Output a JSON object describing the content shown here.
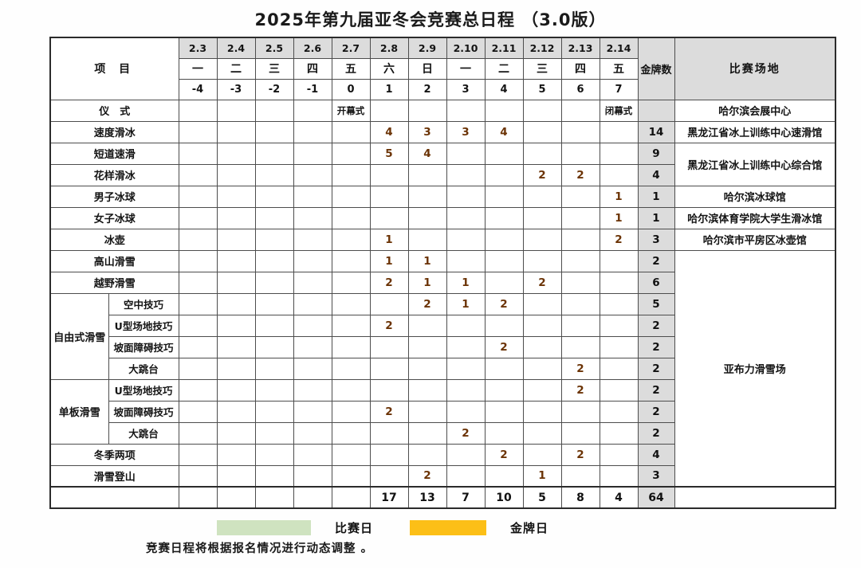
{
  "title": "2025年第九届亚冬会竞赛总日程 （3.0版）",
  "colors": {
    "competition_day_green": "#c7dfb4",
    "gold_day_orange": "#fcbf17",
    "header_gray": "#dcdcdc",
    "orange_cell_number_text": "#6b3305"
  },
  "header": {
    "project_label": "项 目",
    "gold_label": "金牌数",
    "venue_label": "比赛场地",
    "dates": [
      "2.3",
      "2.4",
      "2.5",
      "2.6",
      "2.7",
      "2.8",
      "2.9",
      "2.10",
      "2.11",
      "2.12",
      "2.13",
      "2.14"
    ],
    "weekdays": [
      "一",
      "二",
      "三",
      "四",
      "五",
      "六",
      "日",
      "一",
      "二",
      "三",
      "四",
      "五"
    ],
    "daynums": [
      "-4",
      "-3",
      "-2",
      "-1",
      "0",
      "1",
      "2",
      "3",
      "4",
      "5",
      "6",
      "7"
    ]
  },
  "rows": [
    {
      "label": "仪　式",
      "cells": [
        null,
        null,
        null,
        null,
        {
          "bg": "green",
          "text": "开幕式",
          "small": true
        },
        null,
        null,
        null,
        null,
        null,
        null,
        {
          "bg": "green",
          "text": "闭幕式",
          "small": true
        }
      ],
      "gold": "",
      "venue": {
        "text": "哈尔滨会展中心",
        "span": 1
      }
    },
    {
      "label": "速度滑冰",
      "cells": [
        null,
        null,
        null,
        null,
        null,
        {
          "bg": "orange",
          "text": "4"
        },
        {
          "bg": "orange",
          "text": "3"
        },
        {
          "bg": "orange",
          "text": "3"
        },
        {
          "bg": "orange",
          "text": "4"
        },
        null,
        null,
        null
      ],
      "gold": "14",
      "venue": {
        "text": "黑龙江省冰上训练中心速滑馆",
        "span": 1
      }
    },
    {
      "label": "短道速滑",
      "cells": [
        null,
        null,
        null,
        null,
        {
          "bg": "green"
        },
        {
          "bg": "orange",
          "text": "5"
        },
        {
          "bg": "orange",
          "text": "4"
        },
        null,
        null,
        null,
        null,
        null
      ],
      "gold": "9",
      "venue": {
        "text": "黑龙江省冰上训练中心综合馆",
        "span": 2
      }
    },
    {
      "label": "花样滑冰",
      "cells": [
        null,
        null,
        null,
        null,
        null,
        null,
        null,
        null,
        {
          "bg": "green"
        },
        {
          "bg": "orange",
          "text": "2"
        },
        {
          "bg": "orange",
          "text": "2"
        },
        null
      ],
      "gold": "4"
    },
    {
      "label": "男子冰球",
      "cells": [
        {
          "bg": "green"
        },
        {
          "bg": "green"
        },
        {
          "bg": "green"
        },
        {
          "bg": "green"
        },
        {
          "bg": "green"
        },
        {
          "bg": "green"
        },
        {
          "bg": "green"
        },
        {
          "bg": "green"
        },
        {
          "bg": "green"
        },
        {
          "bg": "green"
        },
        {
          "bg": "green"
        },
        {
          "bg": "orange",
          "text": "1"
        }
      ],
      "gold": "1",
      "venue": {
        "text": "哈尔滨冰球馆",
        "span": 1
      }
    },
    {
      "label": "女子冰球",
      "cells": [
        {
          "bg": "green"
        },
        {
          "bg": "green"
        },
        {
          "bg": "green"
        },
        {
          "bg": "green"
        },
        {
          "bg": "green"
        },
        {
          "bg": "green"
        },
        {
          "bg": "green"
        },
        {
          "bg": "green"
        },
        {
          "bg": "green"
        },
        {
          "bg": "green"
        },
        {
          "bg": "green"
        },
        {
          "bg": "orange",
          "text": "1"
        }
      ],
      "gold": "1",
      "venue": {
        "text": "哈尔滨体育学院大学生滑冰馆",
        "span": 1
      }
    },
    {
      "label": "冰壶",
      "cells": [
        null,
        {
          "bg": "green"
        },
        {
          "bg": "green"
        },
        {
          "bg": "green"
        },
        {
          "bg": "green"
        },
        {
          "bg": "orange",
          "text": "1"
        },
        {
          "bg": "green"
        },
        {
          "bg": "green"
        },
        {
          "bg": "green"
        },
        {
          "bg": "green"
        },
        {
          "bg": "green"
        },
        {
          "bg": "orange",
          "text": "2"
        }
      ],
      "gold": "3",
      "venue": {
        "text": "哈尔滨市平房区冰壶馆",
        "span": 1
      }
    },
    {
      "label": "高山滑雪",
      "cells": [
        null,
        null,
        null,
        null,
        null,
        {
          "bg": "orange",
          "text": "1"
        },
        {
          "bg": "orange",
          "text": "1"
        },
        null,
        null,
        null,
        null,
        null
      ],
      "gold": "2",
      "venue": {
        "text": "亚布力滑雪场",
        "span": 11
      }
    },
    {
      "label": "越野滑雪",
      "cells": [
        null,
        null,
        null,
        null,
        null,
        {
          "bg": "orange",
          "text": "2"
        },
        {
          "bg": "orange",
          "text": "1"
        },
        {
          "bg": "orange",
          "text": "1"
        },
        null,
        {
          "bg": "orange",
          "text": "2"
        },
        null,
        null
      ],
      "gold": "6"
    },
    {
      "group": {
        "label": "自由式滑雪",
        "span": 4
      },
      "sub": "空中技巧",
      "cells": [
        null,
        null,
        null,
        null,
        null,
        null,
        {
          "bg": "orange",
          "text": "2"
        },
        {
          "bg": "orange",
          "text": "1"
        },
        {
          "bg": "orange",
          "text": "2"
        },
        null,
        null,
        null
      ],
      "gold": "5"
    },
    {
      "sub": "U型场地技巧",
      "cells": [
        null,
        null,
        null,
        null,
        null,
        {
          "bg": "orange",
          "text": "2"
        },
        null,
        null,
        null,
        null,
        null,
        null
      ],
      "gold": "2"
    },
    {
      "sub": "坡面障碍技巧",
      "cells": [
        null,
        null,
        null,
        null,
        null,
        null,
        null,
        null,
        {
          "bg": "orange",
          "text": "2"
        },
        null,
        null,
        null
      ],
      "gold": "2"
    },
    {
      "sub": "大跳台",
      "cells": [
        null,
        null,
        null,
        null,
        null,
        null,
        null,
        null,
        null,
        null,
        {
          "bg": "orange",
          "text": "2"
        },
        null
      ],
      "gold": "2"
    },
    {
      "group": {
        "label": "单板滑雪",
        "span": 3
      },
      "sub": "U型场地技巧",
      "cells": [
        null,
        null,
        null,
        null,
        null,
        null,
        null,
        null,
        null,
        {
          "bg": "green"
        },
        {
          "bg": "orange",
          "text": "2"
        },
        null
      ],
      "gold": "2"
    },
    {
      "sub": "坡面障碍技巧",
      "cells": [
        null,
        null,
        null,
        null,
        null,
        {
          "bg": "orange",
          "text": "2"
        },
        null,
        null,
        null,
        null,
        null,
        null
      ],
      "gold": "2"
    },
    {
      "sub": "大跳台",
      "cells": [
        null,
        null,
        null,
        null,
        null,
        null,
        null,
        {
          "bg": "orange",
          "text": "2"
        },
        null,
        null,
        null,
        null
      ],
      "gold": "2"
    },
    {
      "label": "冬季两项",
      "cells": [
        null,
        null,
        null,
        null,
        null,
        null,
        null,
        null,
        {
          "bg": "orange",
          "text": "2"
        },
        null,
        {
          "bg": "orange",
          "text": "2"
        },
        null
      ],
      "gold": "4"
    },
    {
      "label": "滑雪登山",
      "cells": [
        null,
        null,
        null,
        null,
        null,
        null,
        {
          "bg": "orange",
          "text": "2"
        },
        null,
        null,
        {
          "bg": "orange",
          "text": "1"
        },
        null,
        null
      ],
      "gold": "3"
    },
    {
      "label": "",
      "total": true,
      "cells": [
        {
          "text": ""
        },
        {
          "text": ""
        },
        {
          "text": ""
        },
        {
          "text": ""
        },
        {
          "text": ""
        },
        {
          "text": "17"
        },
        {
          "text": "13"
        },
        {
          "text": "7"
        },
        {
          "text": "10"
        },
        {
          "text": "5"
        },
        {
          "text": "8"
        },
        {
          "text": "4"
        }
      ],
      "gold": "64",
      "venue": {
        "text": "",
        "span": 1
      }
    }
  ],
  "legend": {
    "competition_day": "比赛日",
    "gold_day": "金牌日"
  },
  "note": "竞赛日程将根据报名情况进行动态调整 。"
}
